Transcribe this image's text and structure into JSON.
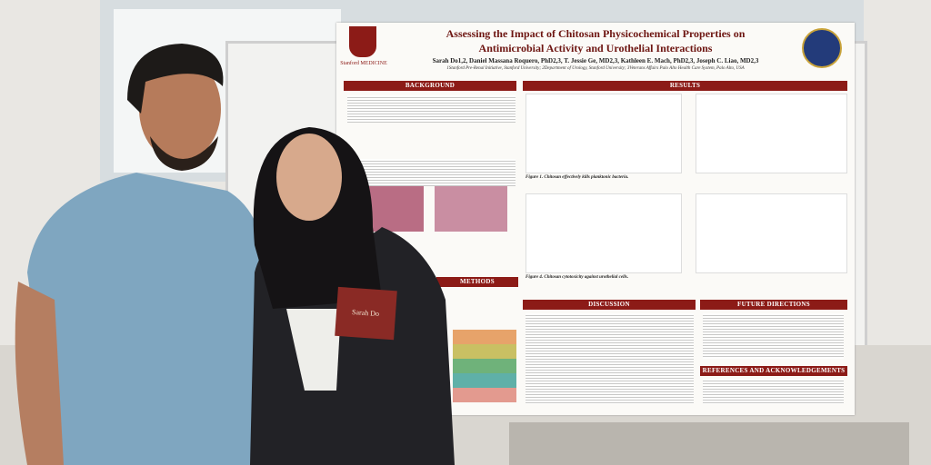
{
  "poster": {
    "logo_left": "Stanford MEDICINE",
    "title_line1": "Assessing the Impact of Chitosan Physicochemical Properties on",
    "title_line2": "Antimicrobial Activity and Urothelial Interactions",
    "authors": "Sarah Do1,2, Daniel Massana Roquero, PhD2,3, T. Jessie Ge, MD2,3, Kathleen E. Mach, PhD2,3, Joseph C. Liao, MD2,3",
    "affiliations": "1Stanford Pre-Renal Initiative, Stanford University; 2Department of Urology, Stanford University; 3Veterans Affairs Palo Alto Health Care System, Palo Alto, USA",
    "sections": {
      "background": "BACKGROUND",
      "results": "RESULTS",
      "methods": "METHODS",
      "discussion": "DISCUSSION",
      "future": "FUTURE DIRECTIONS",
      "references": "REFERENCES AND ACKNOWLEDGEMENTS"
    },
    "figure1_caption": "Figure 1. Chitosan effectively kills planktonic bacteria.",
    "figure4_caption": "Figure 4. Chitosan cytotoxicity against urothelial cells."
  },
  "badge": {
    "name": "Sarah Do"
  }
}
